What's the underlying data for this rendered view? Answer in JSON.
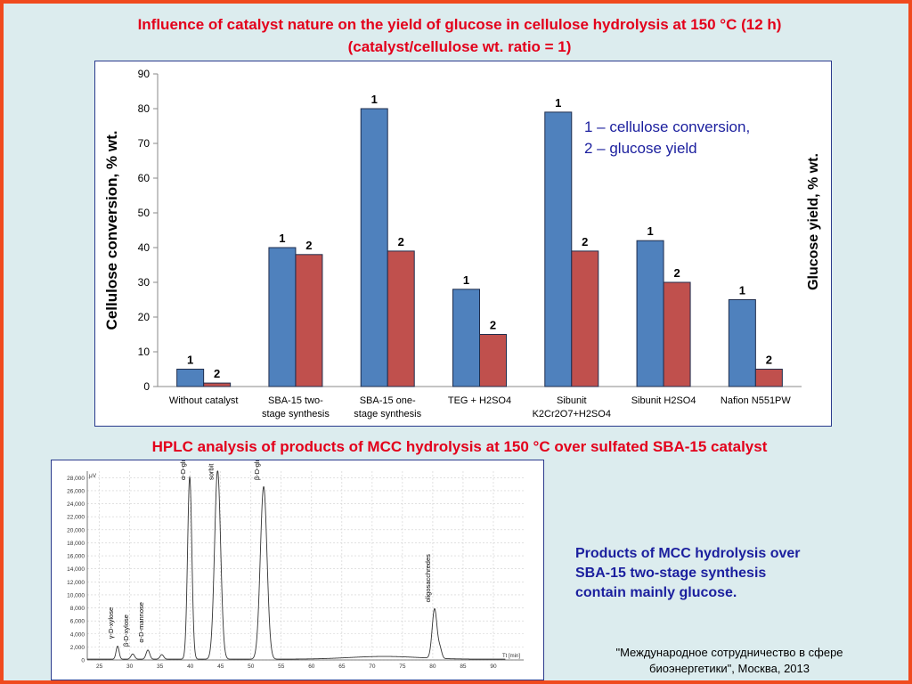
{
  "slide": {
    "title_line1": "Influence of catalyst nature on the yield of glucose in cellulose hydrolysis at 150 °C (12 h)",
    "title_line2": "(catalyst/cellulose wt. ratio = 1)",
    "hplc_title": "HPLC analysis of products of MCC hydrolysis at 150 °C over sulfated SBA-15 catalyst",
    "products_text": [
      "Products of MCC hydrolysis over",
      "SBA-15 two-stage synthesis",
      "contain mainly glucose."
    ],
    "credit": [
      "\"Международное сотрудничество в сфере",
      "биоэнергетики\", Москва, 2013"
    ],
    "colors": {
      "border": "#f04a1e",
      "background": "#dcecee",
      "title": "#e3001b",
      "text_blue": "#1b1f9e"
    }
  },
  "chart_data": [
    {
      "type": "bar",
      "categories": [
        [
          "Without catalyst"
        ],
        [
          "SBA-15 two-",
          "stage synthesis"
        ],
        [
          "SBA-15 one-",
          "stage synthesis"
        ],
        [
          "TEG + H2SO4"
        ],
        [
          "Sibunit",
          "K2Cr2O7+H2SO4"
        ],
        [
          "Sibunit H2SO4"
        ],
        [
          "Nafion N551PW"
        ]
      ],
      "series": [
        {
          "values": [
            5,
            40,
            80,
            28,
            79,
            42,
            25
          ],
          "color": "#4f81bd",
          "label": "1"
        },
        {
          "values": [
            1,
            38,
            39,
            15,
            39,
            30,
            5
          ],
          "color": "#c0504d",
          "label": "2"
        }
      ],
      "ylabel": "Cellulose conversion, % wt.",
      "y2label": "Glucose yield, % wt.",
      "ylim": [
        0,
        90
      ],
      "yticks": [
        0,
        10,
        20,
        30,
        40,
        50,
        60,
        70,
        80,
        90
      ],
      "annotation": [
        "1 – cellulose conversion,",
        "2 – glucose yield"
      ],
      "grid": false
    },
    {
      "type": "line",
      "xlim": [
        23,
        95
      ],
      "ylim": [
        0,
        29000
      ],
      "xticks": [
        25,
        30,
        35,
        40,
        45,
        50,
        55,
        60,
        65,
        70,
        75,
        80,
        85,
        90
      ],
      "yticks": [
        0,
        2000,
        4000,
        6000,
        8000,
        10000,
        12000,
        14000,
        16000,
        18000,
        20000,
        22000,
        24000,
        26000,
        28000
      ],
      "ytick_labels": [
        "0",
        "2,000",
        "4,000",
        "6,000",
        "8,000",
        "10,000",
        "12,000",
        "14,000",
        "16,000",
        "18,000",
        "20,000",
        "22,000",
        "24,000",
        "26,000",
        "28,000"
      ],
      "yunit": "μV",
      "xunit": "Tt [min]",
      "peaks": [
        {
          "x": 28.0,
          "height": 2000,
          "width": 0.25,
          "label": "γ-D-xylose"
        },
        {
          "x": 30.5,
          "height": 800,
          "width": 0.3,
          "label": "β-D-xylose"
        },
        {
          "x": 33.0,
          "height": 1400,
          "width": 0.3,
          "label": "α-D-mannose"
        },
        {
          "x": 35.3,
          "height": 700,
          "width": 0.3,
          "label": ""
        },
        {
          "x": 39.9,
          "height": 28000,
          "width": 0.35,
          "label": "α-D-glucose"
        },
        {
          "x": 44.5,
          "height": 29000,
          "width": 0.5,
          "label": "sorbit"
        },
        {
          "x": 52.1,
          "height": 26500,
          "width": 0.55,
          "label": "β-D-glucose"
        },
        {
          "x": 80.3,
          "height": 7600,
          "width": 0.4,
          "label": "oligosacchredes"
        },
        {
          "x": 81.2,
          "height": 1400,
          "width": 0.3,
          "label": ""
        }
      ]
    }
  ]
}
